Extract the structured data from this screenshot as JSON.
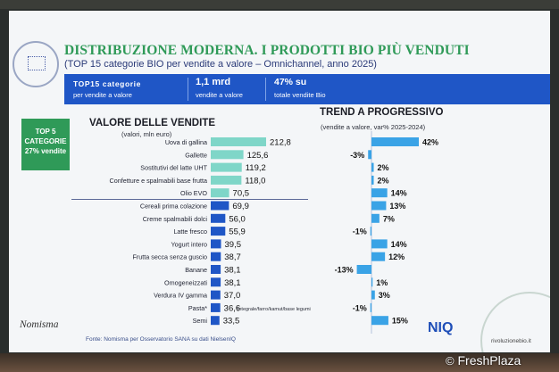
{
  "slide": {
    "title": "DISTRIBUZIONE MODERNA. I PRODOTTI BIO PIÙ VENDUTI",
    "subtitle": "(TOP 15 categorie BIO per vendite a valore – Omnichannel, anno 2025)",
    "banner": {
      "top_label": "TOP15 categorie",
      "top_sub": "per vendite a valore",
      "value_main": "1,1 mrd",
      "value_sub": "vendite a valore",
      "share_main": "47% su",
      "share_sub": "totale vendite Bio"
    },
    "top5_box": [
      "TOP 5",
      "CATEGORIE",
      "27% vendite"
    ],
    "left_header": "VALORE DELLE VENDITE",
    "left_sub": "(valori, mln euro)",
    "right_header": "TREND A PROGRESSIVO",
    "right_sub": "(vendite a valore, var% 2025-2024)",
    "note": "*integrale/farro/kamut/base legumi",
    "source": "Fonte: Nomisma per Osservatorio SANA su dati NielsenIQ",
    "brand_left": "Nomisma",
    "brand_right": "NIQ",
    "site": "rivoluzionebio.it",
    "watermark": "FreshPlaza"
  },
  "colors": {
    "title_green": "#2f9a58",
    "banner_blue": "#1f56c6",
    "bar_top5": "#7fd6c8",
    "bar_rest": "#1f56c6",
    "trend_bar": "#3aa3e6"
  },
  "chart_data": [
    {
      "type": "bar",
      "orientation": "horizontal",
      "title": "VALORE DELLE VENDITE",
      "ylabel": "(valori, mln euro)",
      "categories": [
        "Uova di gallina",
        "Gallette",
        "Sostitutivi del latte UHT",
        "Confetture e spalmabili base frutta",
        "Olio EVO",
        "Cereali prima colazione",
        "Creme spalmabili dolci",
        "Latte fresco",
        "Yogurt intero",
        "Frutta secca senza guscio",
        "Banane",
        "Omogeneizzati",
        "Verdura IV gamma",
        "Pasta*",
        "Semi"
      ],
      "values": [
        212.8,
        125.6,
        119.2,
        118.0,
        70.5,
        69.9,
        56.0,
        55.9,
        39.5,
        38.7,
        38.1,
        38.1,
        37.0,
        36.6,
        33.5
      ],
      "labels": [
        "212,8",
        "125,6",
        "119,2",
        "118,0",
        "70,5",
        "69,9",
        "56,0",
        "55,9",
        "39,5",
        "38,7",
        "38,1",
        "38,1",
        "37,0",
        "36,6",
        "33,5"
      ],
      "top5_count": 5
    },
    {
      "type": "bar",
      "orientation": "horizontal",
      "title": "TREND A PROGRESSIVO",
      "ylabel": "(vendite a valore, var% 2025-2024)",
      "categories": [
        "Uova di gallina",
        "Gallette",
        "Sostitutivi del latte UHT",
        "Confetture e spalmabili base frutta",
        "Olio EVO",
        "Cereali prima colazione",
        "Creme spalmabili dolci",
        "Latte fresco",
        "Yogurt intero",
        "Frutta secca senza guscio",
        "Banane",
        "Omogeneizzati",
        "Verdura IV gamma",
        "Pasta*",
        "Semi"
      ],
      "values": [
        42,
        -3,
        2,
        2,
        14,
        13,
        7,
        -1,
        14,
        12,
        -13,
        1,
        3,
        -1,
        15
      ],
      "labels": [
        "42%",
        "-3%",
        "2%",
        "2%",
        "14%",
        "13%",
        "7%",
        "-1%",
        "14%",
        "12%",
        "-13%",
        "1%",
        "3%",
        "-1%",
        "15%"
      ]
    }
  ]
}
